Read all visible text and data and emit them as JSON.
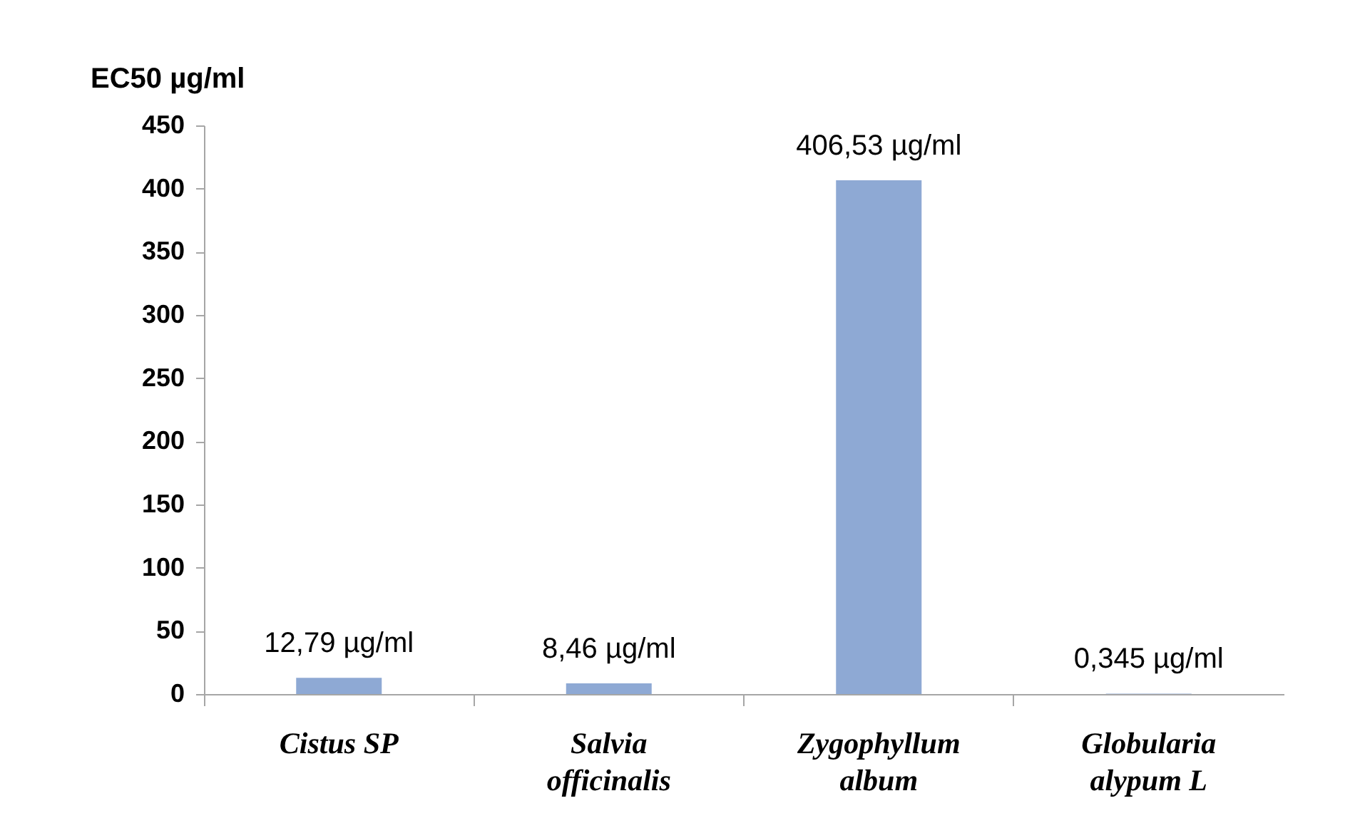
{
  "chart_data": {
    "type": "bar",
    "ylabel": "EC50 µg/ml",
    "categories": [
      "Cistus SP",
      "Salvia officinalis",
      "Zygophyllum album",
      "Globularia alypum L"
    ],
    "values": [
      12.79,
      8.46,
      406.53,
      0.345
    ],
    "color": "#8ea9d4",
    "value_labels": [
      "12,79 µg/ml",
      "8,46 µg/ml",
      "406,53 µg/ml",
      "0,345 µg/ml"
    ],
    "ylim": [
      0,
      450
    ],
    "yticks": [
      0,
      50,
      100,
      150,
      200,
      250,
      300,
      350,
      400,
      450
    ]
  }
}
